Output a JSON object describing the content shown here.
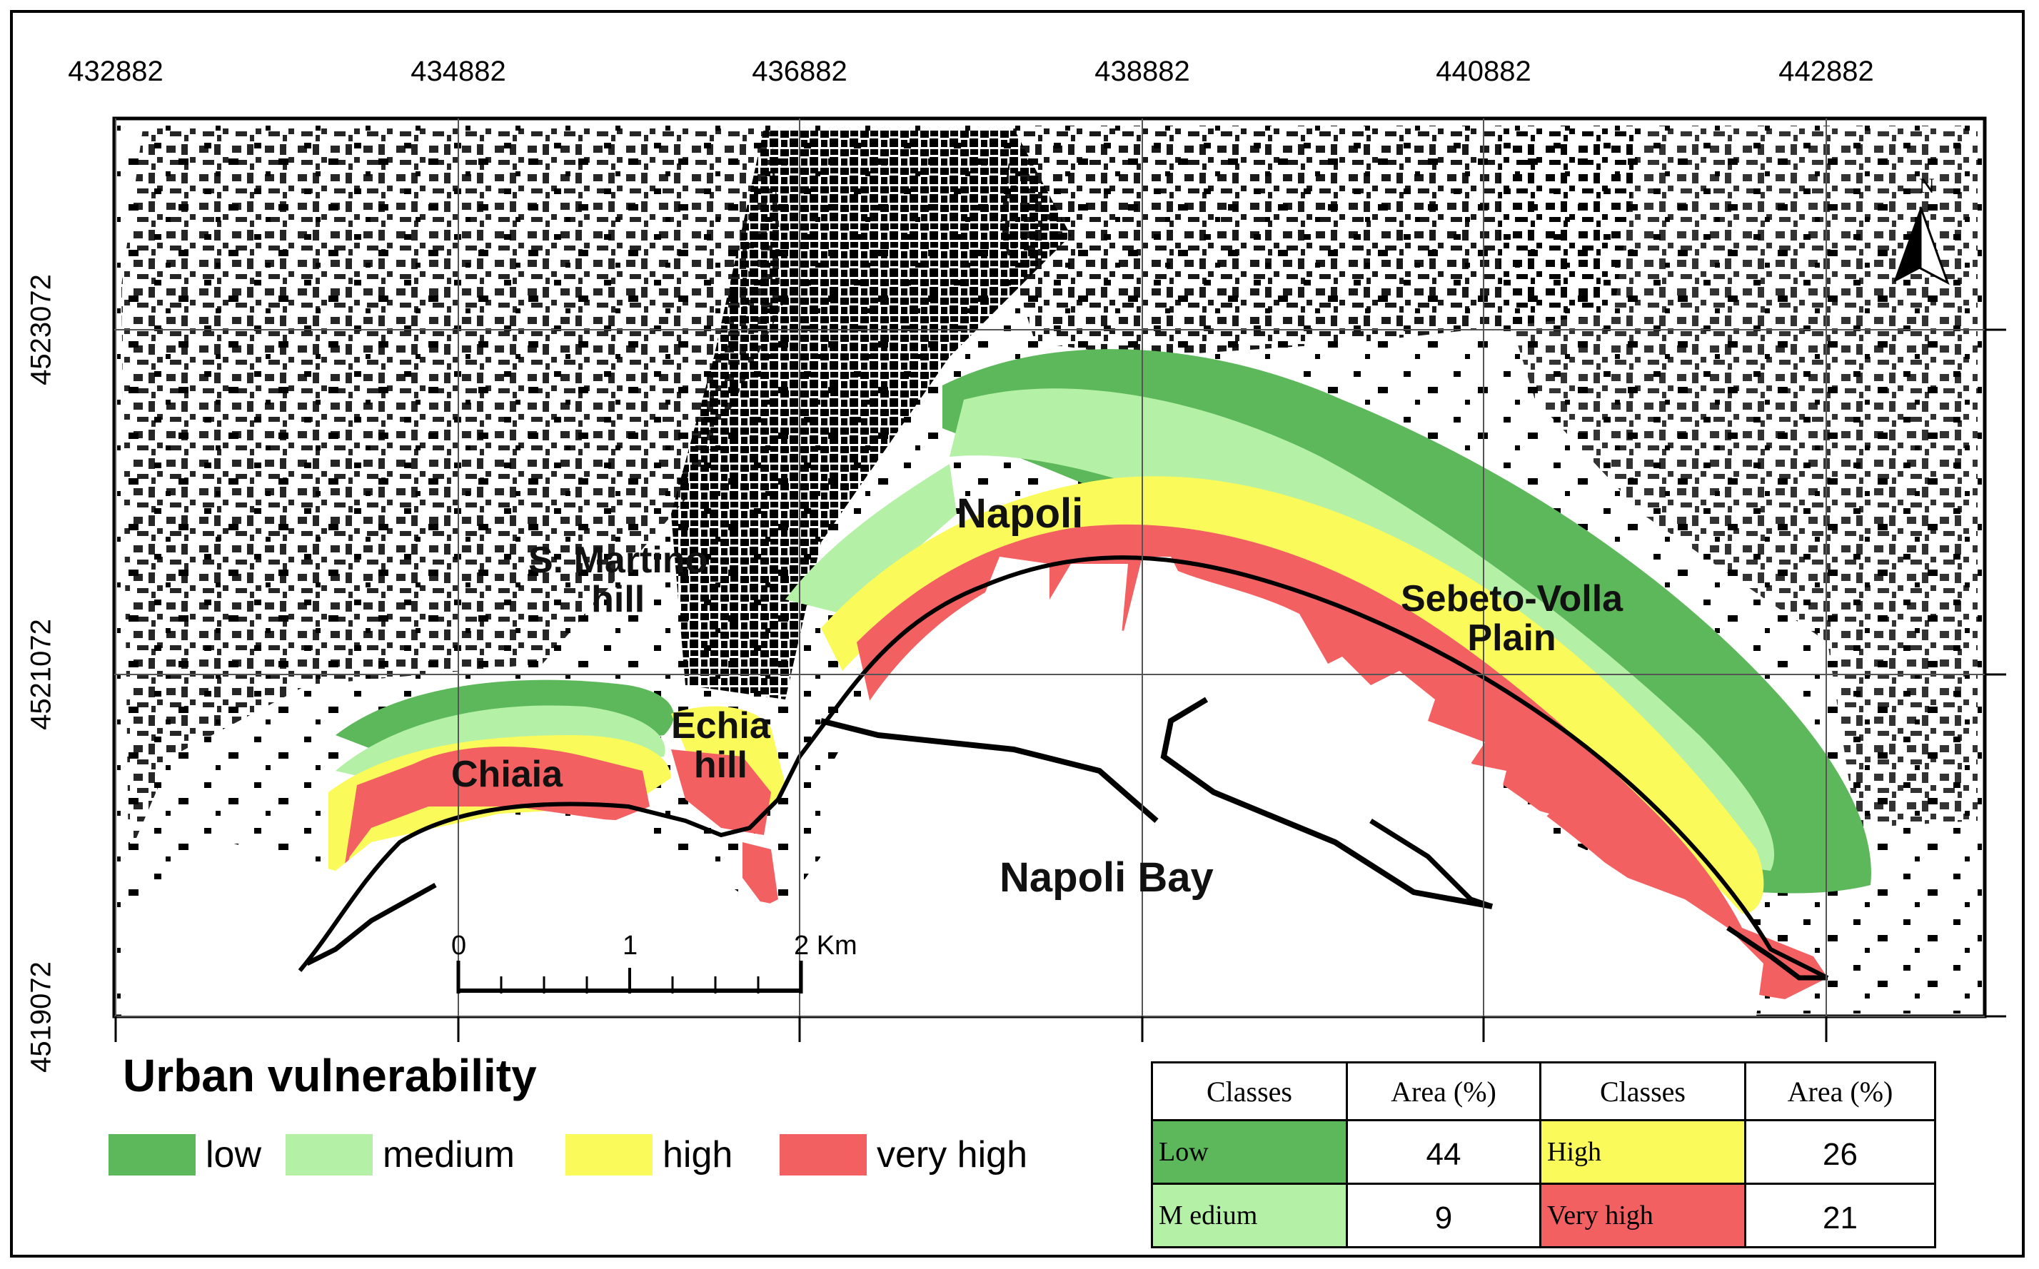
{
  "map": {
    "x_ticks": [
      "432882",
      "434882",
      "436882",
      "438882",
      "440882",
      "442882"
    ],
    "y_ticks": [
      "4523072",
      "4521072",
      "4519072"
    ],
    "north_label": "N",
    "places": {
      "martino": "S. Martino\nhill",
      "napoli": "Napoli",
      "sebeto": "Sebeto-Volla\nPlain",
      "echia": "Echia\nhill",
      "chiaia": "Chiaia",
      "bay": "Napoli Bay"
    },
    "scale_bar": {
      "labels": [
        "0",
        "1",
        "2 Km"
      ]
    }
  },
  "legend": {
    "title": "Urban vulnerability",
    "items": [
      {
        "label": "low",
        "color": "#5cb85a"
      },
      {
        "label": "medium",
        "color": "#b4f0a6"
      },
      {
        "label": "high",
        "color": "#fafa5a"
      },
      {
        "label": "very high",
        "color": "#f26062"
      }
    ]
  },
  "stats_table": {
    "headers": [
      "Classes",
      "Area (%)",
      "Classes",
      "Area (%)"
    ],
    "rows": [
      {
        "class_a": "Low",
        "area_a": "44",
        "class_b": "High",
        "area_b": "26"
      },
      {
        "class_a": "M edium",
        "area_a": "9",
        "class_b": "Very high",
        "area_b": "21"
      }
    ]
  }
}
